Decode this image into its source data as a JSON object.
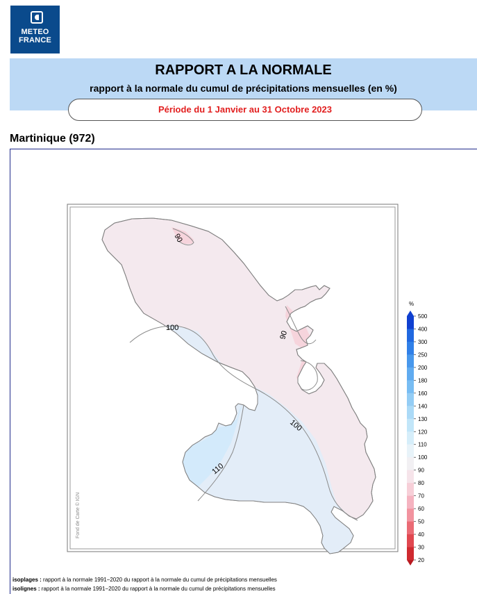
{
  "logo": {
    "line1": "METEO",
    "line2": "FRANCE",
    "color": "#0a4a8c"
  },
  "header": {
    "title": "RAPPORT A LA NORMALE",
    "subtitle": "rapport à la normale du cumul de précipitations mensuelles (en %)",
    "period": "Période du 1 Janvier au 31 Octobre 2023",
    "banner_color": "#bcd9f5",
    "period_color": "#e21f1f"
  },
  "region": {
    "name": "Martinique (972)"
  },
  "map": {
    "credit": "Fond de Carte © IGN",
    "isoline_labels": [
      "90",
      "100",
      "90",
      "100",
      "110"
    ],
    "zones": [
      {
        "range": "90–100",
        "color": "#f4e9ee"
      },
      {
        "range": "100–110",
        "color": "#e3edf8"
      },
      {
        "range": "110–120",
        "color": "#d3eafb"
      },
      {
        "range": "80–90",
        "color": "#f6d4dc"
      }
    ]
  },
  "legend": {
    "unit": "%",
    "ticks": [
      "500",
      "400",
      "300",
      "250",
      "200",
      "180",
      "160",
      "140",
      "130",
      "120",
      "110",
      "100",
      "90",
      "80",
      "70",
      "60",
      "50",
      "40",
      "30",
      "20"
    ],
    "colors": [
      "#1040d0",
      "#2068e0",
      "#3080e8",
      "#4898ec",
      "#60abf0",
      "#78bdf3",
      "#94cdf5",
      "#abdaf7",
      "#c2e6f9",
      "#d6eefa",
      "#e8f3f9",
      "#f2f0f3",
      "#f6e4ea",
      "#f7cfd8",
      "#f5b3c0",
      "#f2939f",
      "#ea6b75",
      "#e04850",
      "#cf2a30",
      "#b81a20"
    ],
    "top_color": "#1040d0",
    "bottom_color": "#b81a20"
  },
  "footnotes": {
    "isoplages_label": "isoplages :",
    "isoplages_text": "rapport à la normale 1991−2020 du rapport à la normale du cumul de précipitations mensuelles",
    "isolignes_label": "isolignes :",
    "isolignes_text": "rapport à la normale 1991−2020 du rapport à la normale du cumul de précipitations mensuelles"
  }
}
